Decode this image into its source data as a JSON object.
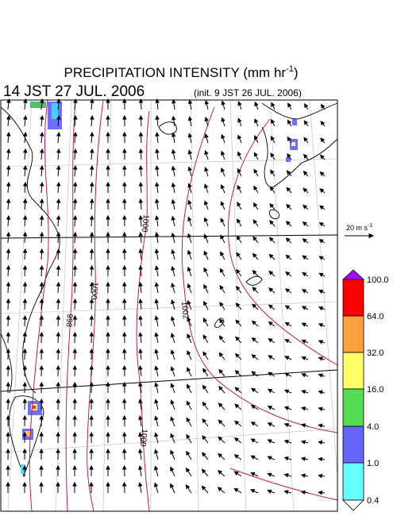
{
  "header": {
    "title": "PRECIPITATION INTENSITY (mm hr",
    "title_exponent": "-1",
    "title_close": ")",
    "valid_time": "14 JST 27 JUL. 2006",
    "init_time": "(init. 9 JST 26 JUL. 2006)"
  },
  "reference_vector": {
    "label": "20 m s",
    "exponent": "-1"
  },
  "colorbar": {
    "labels": [
      "100.0",
      "64.0",
      "32.0",
      "16.0",
      "4.0",
      "1.0",
      "0.4"
    ]
  },
  "contours": [
    {
      "label": "1000"
    },
    {
      "label": "1000"
    },
    {
      "label": "998"
    },
    {
      "label": "1002"
    },
    {
      "label": "1000"
    }
  ]
}
